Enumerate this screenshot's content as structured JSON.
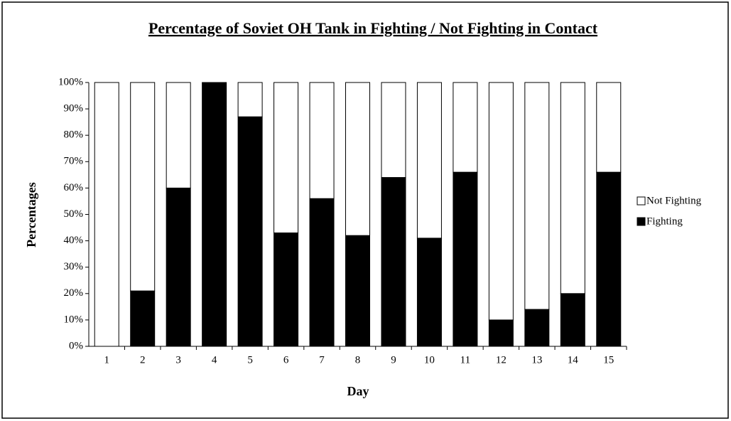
{
  "chart_data": {
    "type": "stacked_bar",
    "title": "Percentage of Soviet OH Tank in Fighting / Not Fighting in Contact",
    "x_label": "Day",
    "y_label": "Percentages",
    "categories": [
      "1",
      "2",
      "3",
      "4",
      "5",
      "6",
      "7",
      "8",
      "9",
      "10",
      "11",
      "12",
      "13",
      "14",
      "15"
    ],
    "series": [
      {
        "name": "Fighting",
        "color": "#000000",
        "values": [
          0,
          21,
          60,
          100,
          87,
          43,
          56,
          42,
          64,
          41,
          66,
          10,
          14,
          20,
          66
        ]
      },
      {
        "name": "Not Fighting",
        "color": "#ffffff",
        "values": [
          100,
          79,
          40,
          0,
          13,
          57,
          44,
          58,
          36,
          59,
          34,
          90,
          86,
          80,
          34
        ]
      }
    ],
    "ylim": [
      0,
      100
    ],
    "yticks": [
      {
        "value": 0,
        "label": "0%"
      },
      {
        "value": 10,
        "label": "10%"
      },
      {
        "value": 20,
        "label": "20%"
      },
      {
        "value": 30,
        "label": "30%"
      },
      {
        "value": 40,
        "label": "40%"
      },
      {
        "value": 50,
        "label": "50%"
      },
      {
        "value": 60,
        "label": "60%"
      },
      {
        "value": 70,
        "label": "70%"
      },
      {
        "value": 80,
        "label": "80%"
      },
      {
        "value": 90,
        "label": "90%"
      },
      {
        "value": 100,
        "label": "100%"
      }
    ],
    "legend": "right"
  }
}
